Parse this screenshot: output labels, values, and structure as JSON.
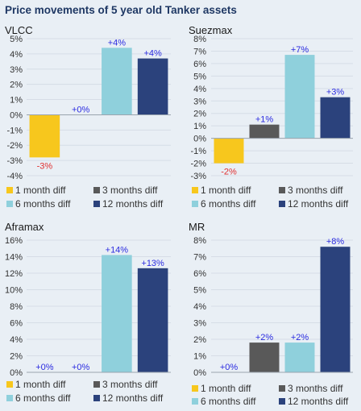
{
  "title": "Price movements of 5 year old Tanker assets",
  "colors": {
    "1 month diff": "#f7c71d",
    "3 months diff": "#595959",
    "6 months diff": "#8fd0dc",
    "12 months diff": "#2b427c",
    "positive_label": "#2b2be0",
    "negative_label": "#e03030"
  },
  "chart_data": [
    {
      "type": "bar",
      "title": "VLCC",
      "categories": [
        "1 month diff",
        "3 months diff",
        "6 months diff",
        "12 months diff"
      ],
      "values": [
        -2.8,
        0.0,
        4.4,
        3.7
      ],
      "data_labels": [
        "-3%",
        "+0%",
        "+4%",
        "+4%"
      ],
      "ylim": [
        -4,
        5
      ],
      "yticks": [
        "-4%",
        "-3%",
        "-2%",
        "-1%",
        "0%",
        "1%",
        "2%",
        "3%",
        "4%",
        "5%"
      ],
      "legend": [
        "1 month diff",
        "3 months diff",
        "6 months diff",
        "12 months diff"
      ],
      "legend_position": "bottom"
    },
    {
      "type": "bar",
      "title": "Suezmax",
      "categories": [
        "1 month diff",
        "3 months diff",
        "6 months diff",
        "12 months diff"
      ],
      "values": [
        -2.0,
        1.1,
        6.7,
        3.3
      ],
      "data_labels": [
        "-2%",
        "+1%",
        "+7%",
        "+3%"
      ],
      "ylim": [
        -3,
        8
      ],
      "yticks": [
        "-3%",
        "-2%",
        "-1%",
        "0%",
        "1%",
        "2%",
        "3%",
        "4%",
        "5%",
        "6%",
        "7%",
        "8%"
      ],
      "legend": [
        "1 month diff",
        "3 months diff",
        "6 months diff",
        "12 months diff"
      ],
      "legend_position": "bottom"
    },
    {
      "type": "bar",
      "title": "Aframax",
      "categories": [
        "1 month diff",
        "3 months diff",
        "6 months diff",
        "12 months diff"
      ],
      "values": [
        0.0,
        0.0,
        14.2,
        12.6
      ],
      "data_labels": [
        "+0%",
        "+0%",
        "+14%",
        "+13%"
      ],
      "ylim": [
        0,
        16
      ],
      "yticks": [
        "0%",
        "2%",
        "4%",
        "6%",
        "8%",
        "10%",
        "12%",
        "14%",
        "16%"
      ],
      "legend": [
        "1 month diff",
        "3 months diff",
        "6 months diff",
        "12 months diff"
      ],
      "legend_position": "bottom"
    },
    {
      "type": "bar",
      "title": "MR",
      "categories": [
        "1 month diff",
        "3 months diff",
        "6 months diff",
        "12 months diff"
      ],
      "values": [
        0.0,
        1.8,
        1.8,
        7.6
      ],
      "data_labels": [
        "+0%",
        "+2%",
        "+2%",
        "+8%"
      ],
      "ylim": [
        0,
        8
      ],
      "yticks": [
        "0%",
        "1%",
        "2%",
        "3%",
        "4%",
        "5%",
        "6%",
        "7%",
        "8%"
      ],
      "legend": [
        "1 month diff",
        "3 months diff",
        "6 months diff",
        "12 months diff"
      ],
      "legend_position": "bottom"
    }
  ]
}
